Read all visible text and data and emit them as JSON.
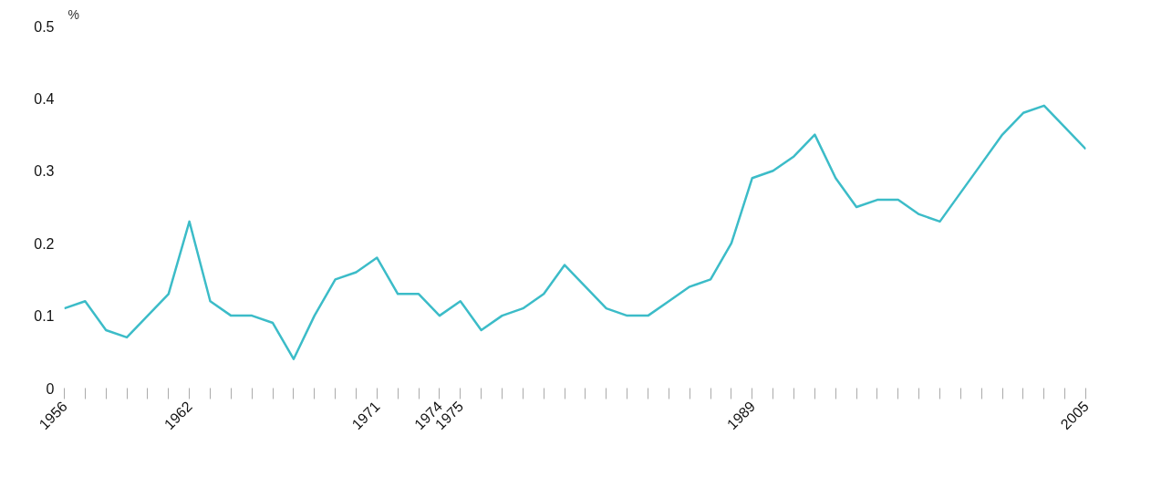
{
  "chart_data": {
    "type": "line",
    "ylabel": "%",
    "x": [
      1956,
      1957,
      1958,
      1959,
      1960,
      1961,
      1962,
      1963,
      1964,
      1965,
      1966,
      1967,
      1968,
      1969,
      1970,
      1971,
      1972,
      1973,
      1974,
      1975,
      1976,
      1977,
      1978,
      1979,
      1980,
      1981,
      1982,
      1983,
      1984,
      1985,
      1986,
      1987,
      1988,
      1989,
      1990,
      1991,
      1992,
      1993,
      1994,
      1995,
      1996,
      1997,
      1998,
      1999,
      2000,
      2001,
      2002,
      2003,
      2004,
      2005
    ],
    "series": [
      {
        "color": "#3cbcc8",
        "values": [
          0.11,
          0.12,
          0.08,
          0.07,
          0.1,
          0.13,
          0.23,
          0.12,
          0.1,
          0.1,
          0.09,
          0.04,
          0.1,
          0.15,
          0.16,
          0.18,
          0.13,
          0.13,
          0.1,
          0.12,
          0.08,
          0.1,
          0.11,
          0.13,
          0.17,
          0.14,
          0.11,
          0.1,
          0.1,
          0.12,
          0.14,
          0.15,
          0.2,
          0.29,
          0.3,
          0.32,
          0.35,
          0.29,
          0.25,
          0.26,
          0.26,
          0.24,
          0.23,
          0.27,
          0.31,
          0.35,
          0.38,
          0.39,
          0.36,
          0.33
        ]
      }
    ],
    "xlim": [
      1956,
      2005
    ],
    "ylim": [
      0,
      0.5
    ],
    "yticks": [
      0,
      0.1,
      0.2,
      0.3,
      0.4,
      0.5
    ],
    "xticks": [
      1956,
      {
        "value": 1957,
        "label": null
      },
      {
        "value": 1958,
        "label": null
      },
      {
        "value": 1959,
        "label": null
      },
      {
        "value": 1960,
        "label": null
      },
      {
        "value": 1961,
        "label": null
      },
      1962,
      {
        "value": 1963,
        "label": null
      },
      {
        "value": 1964,
        "label": null
      },
      {
        "value": 1965,
        "label": null
      },
      {
        "value": 1966,
        "label": null
      },
      {
        "value": 1967,
        "label": null
      },
      {
        "value": 1968,
        "label": null
      },
      {
        "value": 1969,
        "label": null
      },
      {
        "value": 1970,
        "label": null
      },
      1971,
      {
        "value": 1972,
        "label": null
      },
      {
        "value": 1973,
        "label": null
      },
      1974,
      1975,
      {
        "value": 1976,
        "label": null
      },
      {
        "value": 1977,
        "label": null
      },
      {
        "value": 1978,
        "label": null
      },
      {
        "value": 1979,
        "label": null
      },
      {
        "value": 1980,
        "label": null
      },
      {
        "value": 1981,
        "label": null
      },
      {
        "value": 1982,
        "label": null
      },
      {
        "value": 1983,
        "label": null
      },
      {
        "value": 1984,
        "label": null
      },
      {
        "value": 1985,
        "label": null
      },
      {
        "value": 1986,
        "label": null
      },
      {
        "value": 1987,
        "label": null
      },
      {
        "value": 1988,
        "label": null
      },
      1989,
      {
        "value": 1990,
        "label": null
      },
      {
        "value": 1991,
        "label": null
      },
      {
        "value": 1992,
        "label": null
      },
      {
        "value": 1993,
        "label": null
      },
      {
        "value": 1994,
        "label": null
      },
      {
        "value": 1995,
        "label": null
      },
      {
        "value": 1996,
        "label": null
      },
      {
        "value": 1997,
        "label": null
      },
      {
        "value": 1998,
        "label": null
      },
      {
        "value": 1999,
        "label": null
      },
      {
        "value": 2000,
        "label": null
      },
      {
        "value": 2001,
        "label": null
      },
      {
        "value": 2002,
        "label": null
      },
      {
        "value": 2003,
        "label": null
      },
      {
        "value": 2004,
        "label": null
      },
      2005
    ],
    "grid": false,
    "marker": "none",
    "line_style": "solid"
  }
}
